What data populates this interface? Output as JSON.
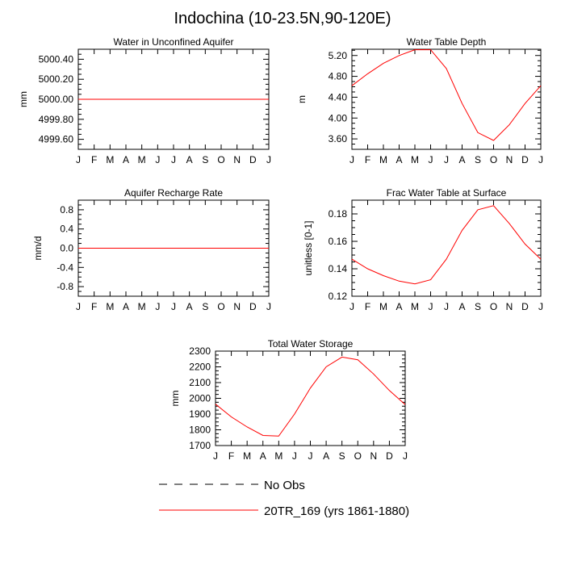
{
  "title": "Indochina (10-23.5N,90-120E)",
  "colors": {
    "model_line": "#ff0000",
    "obs_line": "#000000"
  },
  "legend": [
    {
      "label": "No Obs",
      "style": "dashed",
      "color": "#000000"
    },
    {
      "label": "20TR_169 (yrs 1861-1880)",
      "style": "solid",
      "color": "#ff0000"
    }
  ],
  "chart_data": [
    {
      "type": "line",
      "title": "Water in Unconfined Aquifer",
      "ylabel": "mm",
      "categories": [
        "J",
        "F",
        "M",
        "A",
        "M",
        "J",
        "J",
        "A",
        "S",
        "O",
        "N",
        "D",
        "J"
      ],
      "ylim": [
        4999.5,
        5000.5
      ],
      "yticks": [
        4999.6,
        4999.8,
        5000.0,
        5000.2,
        5000.4
      ],
      "ytick_labels": [
        "4999.60",
        "4999.80",
        "5000.00",
        "5000.20",
        "5000.40"
      ],
      "series": [
        {
          "values": [
            5000,
            5000,
            5000,
            5000,
            5000,
            5000,
            5000,
            5000,
            5000,
            5000,
            5000,
            5000,
            5000
          ]
        }
      ]
    },
    {
      "type": "line",
      "title": "Water Table Depth",
      "ylabel": "m",
      "categories": [
        "J",
        "F",
        "M",
        "A",
        "M",
        "J",
        "J",
        "A",
        "S",
        "O",
        "N",
        "D",
        "J"
      ],
      "ylim": [
        3.4,
        5.32
      ],
      "yticks": [
        3.6,
        4.0,
        4.4,
        4.8,
        5.2
      ],
      "ytick_labels": [
        "3.60",
        "4.00",
        "4.40",
        "4.80",
        "5.20"
      ],
      "series": [
        {
          "values": [
            4.62,
            4.85,
            5.05,
            5.2,
            5.31,
            5.31,
            4.95,
            4.28,
            3.72,
            3.57,
            3.87,
            4.28,
            4.62
          ]
        }
      ]
    },
    {
      "type": "line",
      "title": "Aquifer Recharge Rate",
      "ylabel": "mm/d",
      "categories": [
        "J",
        "F",
        "M",
        "A",
        "M",
        "J",
        "J",
        "A",
        "S",
        "O",
        "N",
        "D",
        "J"
      ],
      "ylim": [
        -1.0,
        1.0
      ],
      "yticks": [
        -0.8,
        -0.4,
        0.0,
        0.4,
        0.8
      ],
      "ytick_labels": [
        "-0.8",
        "-0.4",
        "0.0",
        "0.4",
        "0.8"
      ],
      "series": [
        {
          "values": [
            0,
            0,
            0,
            0,
            0,
            0,
            0,
            0,
            0,
            0,
            0,
            0,
            0
          ]
        }
      ]
    },
    {
      "type": "line",
      "title": "Frac Water Table at Surface",
      "ylabel": "unitless [0-1]",
      "categories": [
        "J",
        "F",
        "M",
        "A",
        "M",
        "J",
        "J",
        "A",
        "S",
        "O",
        "N",
        "D",
        "J"
      ],
      "ylim": [
        0.12,
        0.19
      ],
      "yticks": [
        0.12,
        0.14,
        0.16,
        0.18
      ],
      "ytick_labels": [
        "0.12",
        "0.14",
        "0.16",
        "0.18"
      ],
      "series": [
        {
          "values": [
            0.147,
            0.14,
            0.135,
            0.131,
            0.129,
            0.132,
            0.147,
            0.168,
            0.183,
            0.186,
            0.173,
            0.158,
            0.147
          ]
        }
      ]
    },
    {
      "type": "line",
      "title": "Total Water Storage",
      "ylabel": "mm",
      "categories": [
        "J",
        "F",
        "M",
        "A",
        "M",
        "J",
        "J",
        "A",
        "S",
        "O",
        "N",
        "D",
        "J"
      ],
      "ylim": [
        1700,
        2300
      ],
      "yticks": [
        1700,
        1800,
        1900,
        2000,
        2100,
        2200,
        2300
      ],
      "ytick_labels": [
        "1700",
        "1800",
        "1900",
        "2000",
        "2100",
        "2200",
        "2300"
      ],
      "series": [
        {
          "values": [
            1963,
            1882,
            1818,
            1764,
            1760,
            1900,
            2065,
            2200,
            2262,
            2245,
            2155,
            2050,
            1960
          ]
        }
      ]
    }
  ]
}
